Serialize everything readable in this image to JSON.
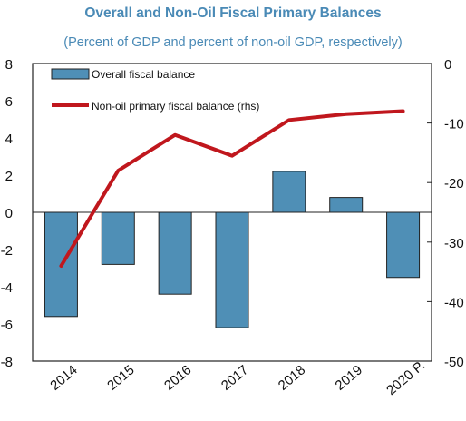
{
  "chart_data": {
    "type": "bar",
    "title": "Overall and Non-Oil Fiscal Primary Balances",
    "subtitle": "(Percent of GDP and percent of non-oil GDP, respectively)",
    "categories": [
      "2014",
      "2015",
      "2016",
      "2017",
      "2018",
      "2019",
      "2020 P."
    ],
    "series": [
      {
        "name": "Overall fiscal balance",
        "type": "bar",
        "axis": "left",
        "color": "#4f8fb6",
        "values": [
          -5.6,
          -2.8,
          -4.4,
          -6.2,
          2.2,
          0.8,
          -3.5
        ]
      },
      {
        "name": "Non-oil primary fiscal balance (rhs)",
        "type": "line",
        "axis": "right",
        "color": "#c0171d",
        "values": [
          -34,
          -18,
          -12,
          -15.5,
          -9.5,
          -8.5,
          -8
        ]
      }
    ],
    "yaxis_left": {
      "min": -8,
      "max": 8,
      "ticks": [
        8,
        6,
        4,
        2,
        0,
        -2,
        -4,
        -6,
        -8
      ]
    },
    "yaxis_right": {
      "min": -50,
      "max": 0,
      "ticks": [
        0,
        -10,
        -20,
        -30,
        -40,
        -50
      ]
    },
    "grid": false,
    "legend": "top-left"
  }
}
